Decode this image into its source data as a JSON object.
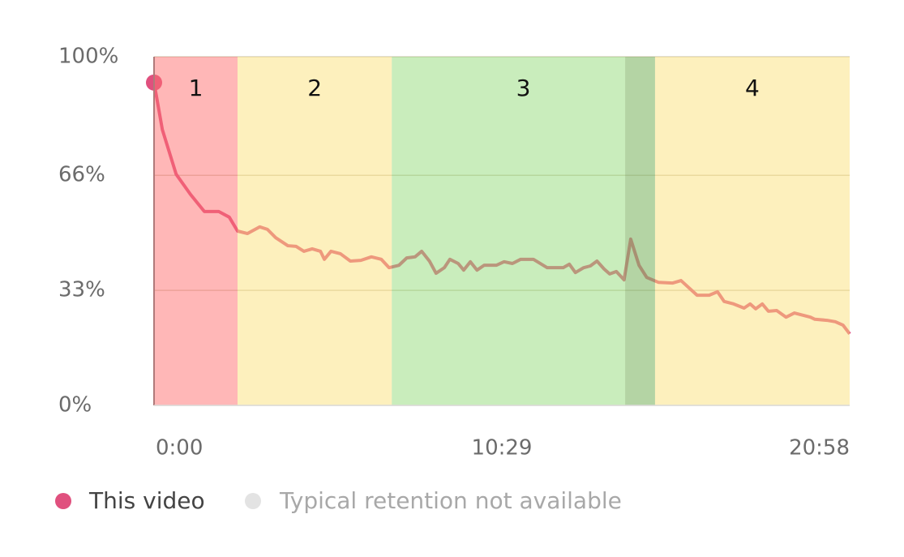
{
  "chart_data": {
    "type": "line",
    "xlim": [
      0,
      1258
    ],
    "ylim": [
      0,
      100
    ],
    "xticks": [
      {
        "value": 0,
        "label": "0:00"
      },
      {
        "value": 629,
        "label": "10:29"
      },
      {
        "value": 1258,
        "label": "20:58"
      }
    ],
    "yticks": [
      {
        "value": 0,
        "label": "0%"
      },
      {
        "value": 33,
        "label": "33%"
      },
      {
        "value": 66,
        "label": "66%"
      },
      {
        "value": 100,
        "label": "100%"
      }
    ],
    "grid": true,
    "x": [
      0,
      15,
      40,
      66,
      91,
      117,
      136,
      151,
      169,
      191,
      205,
      220,
      242,
      257,
      271,
      286,
      301,
      308,
      320,
      337,
      355,
      374,
      393,
      411,
      425,
      443,
      457,
      472,
      484,
      498,
      510,
      525,
      535,
      550,
      560,
      572,
      584,
      597,
      619,
      633,
      648,
      663,
      686,
      711,
      740,
      751,
      762,
      777,
      789,
      801,
      814,
      824,
      836,
      850,
      862,
      877,
      891,
      912,
      938,
      953,
      982,
      1004,
      1019,
      1031,
      1048,
      1067,
      1078,
      1088,
      1100,
      1111,
      1126,
      1143,
      1158,
      1187,
      1195,
      1217,
      1232,
      1246,
      1258
    ],
    "series": [
      {
        "name": "This video",
        "color": "#e0507e",
        "values": [
          92.6,
          79.1,
          66.3,
          60.5,
          55.6,
          55.6,
          54.0,
          50.0,
          49.3,
          51.2,
          50.5,
          48.1,
          45.8,
          45.6,
          44.2,
          44.9,
          44.2,
          41.9,
          44.2,
          43.5,
          41.4,
          41.6,
          42.6,
          41.9,
          39.5,
          40.2,
          42.3,
          42.6,
          44.2,
          41.4,
          37.9,
          39.5,
          41.9,
          40.7,
          38.8,
          41.2,
          38.8,
          40.2,
          40.2,
          41.2,
          40.7,
          41.9,
          41.9,
          39.5,
          39.5,
          40.5,
          38.1,
          39.5,
          40.0,
          41.4,
          39.1,
          37.7,
          38.4,
          36.0,
          47.7,
          40.2,
          36.7,
          35.3,
          35.1,
          35.8,
          31.6,
          31.6,
          32.6,
          29.8,
          29.1,
          27.9,
          29.1,
          27.7,
          29.1,
          27.0,
          27.2,
          25.3,
          26.5,
          25.3,
          24.7,
          24.4,
          24.0,
          23.0,
          20.5
        ]
      }
    ],
    "bands": [
      {
        "label": "1",
        "start": 0,
        "end": 151,
        "color": "#ff7070"
      },
      {
        "label": "2",
        "start": 151,
        "end": 430,
        "color": "#fbe17b"
      },
      {
        "label": "3",
        "start": 430,
        "end": 906,
        "color": "#93db79"
      },
      {
        "label": "4",
        "start": 906,
        "end": 1258,
        "color": "#fbe17b"
      }
    ],
    "highlight": {
      "start": 852,
      "end": 906,
      "color": "#6a7a50"
    },
    "secondary_legend": {
      "label": "Typical retention not available",
      "color": "#e3e3e3"
    }
  }
}
